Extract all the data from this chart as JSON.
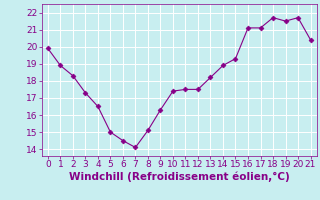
{
  "x": [
    0,
    1,
    2,
    3,
    4,
    5,
    6,
    7,
    8,
    9,
    10,
    11,
    12,
    13,
    14,
    15,
    16,
    17,
    18,
    19,
    20,
    21
  ],
  "y": [
    19.9,
    18.9,
    18.3,
    17.3,
    16.5,
    15.0,
    14.5,
    14.1,
    15.1,
    16.3,
    17.4,
    17.5,
    17.5,
    18.2,
    18.9,
    19.3,
    21.1,
    21.1,
    21.7,
    21.5,
    21.7,
    20.4
  ],
  "line_color": "#880088",
  "marker": "D",
  "marker_size": 2.5,
  "bg_color": "#c8eef0",
  "grid_color": "#ffffff",
  "xlabel": "Windchill (Refroidissement éolien,°C)",
  "xlabel_color": "#880088",
  "xlabel_fontsize": 7.5,
  "ylabel_ticks": [
    14,
    15,
    16,
    17,
    18,
    19,
    20,
    21,
    22
  ],
  "ylim": [
    13.6,
    22.5
  ],
  "xlim": [
    -0.5,
    21.5
  ],
  "tick_color": "#880088",
  "tick_fontsize": 6.5
}
